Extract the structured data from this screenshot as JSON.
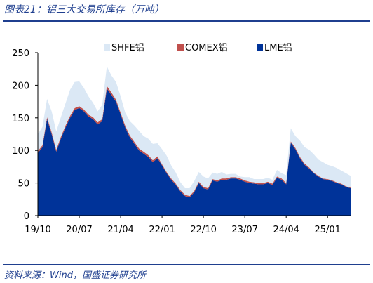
{
  "figure": {
    "title": "图表21：铝三大交易所库存（万吨）",
    "source": "资料来源：Wind，国盛证券研究所"
  },
  "chart_data": {
    "type": "area",
    "stacked": true,
    "unit": "万吨",
    "ylim": [
      0,
      250
    ],
    "y_ticks": [
      0,
      50,
      100,
      150,
      200,
      250
    ],
    "x_tick_labels": [
      "19/10",
      "20/07",
      "21/04",
      "22/01",
      "22/10",
      "23/07",
      "24/04",
      "25/01"
    ],
    "xlim": [
      "2019-10",
      "2025-06"
    ],
    "grid": false,
    "legend_position": "top",
    "colors": {
      "LME铝": "#003399",
      "COMEX铝": "#c0504d",
      "SHFE铝": "#dbe8f5"
    },
    "x": [
      "2019-10",
      "2019-11",
      "2019-12",
      "2020-01",
      "2020-02",
      "2020-03",
      "2020-04",
      "2020-05",
      "2020-06",
      "2020-07",
      "2020-08",
      "2020-09",
      "2020-10",
      "2020-11",
      "2020-12",
      "2021-01",
      "2021-02",
      "2021-03",
      "2021-04",
      "2021-05",
      "2021-06",
      "2021-07",
      "2021-08",
      "2021-09",
      "2021-10",
      "2021-11",
      "2021-12",
      "2022-01",
      "2022-02",
      "2022-03",
      "2022-04",
      "2022-05",
      "2022-06",
      "2022-07",
      "2022-08",
      "2022-09",
      "2022-10",
      "2022-11",
      "2022-12",
      "2023-01",
      "2023-02",
      "2023-03",
      "2023-04",
      "2023-05",
      "2023-06",
      "2023-07",
      "2023-08",
      "2023-09",
      "2023-10",
      "2023-11",
      "2023-12",
      "2024-01",
      "2024-02",
      "2024-03",
      "2024-04",
      "2024-05",
      "2024-06",
      "2024-07",
      "2024-08",
      "2024-09",
      "2024-10",
      "2024-11",
      "2024-12",
      "2025-01",
      "2025-02",
      "2025-03",
      "2025-04",
      "2025-05",
      "2025-06"
    ],
    "series": [
      {
        "name": "LME铝",
        "values": [
          96,
          105,
          148,
          125,
          98,
          118,
          135,
          150,
          162,
          165,
          160,
          152,
          148,
          140,
          145,
          195,
          185,
          175,
          155,
          135,
          120,
          110,
          100,
          95,
          90,
          82,
          88,
          77,
          65,
          55,
          47,
          37,
          30,
          28,
          36,
          50,
          42,
          40,
          54,
          52,
          55,
          55,
          57,
          57,
          55,
          52,
          50,
          49,
          48,
          48,
          50,
          47,
          58,
          55,
          48,
          112,
          102,
          88,
          78,
          72,
          65,
          60,
          56,
          55,
          53,
          50,
          48,
          44,
          42
        ]
      },
      {
        "name": "COMEX铝",
        "values": [
          3,
          3,
          3,
          3,
          3,
          3,
          3,
          3,
          3,
          3,
          3,
          3,
          3,
          3,
          3,
          4,
          4,
          3,
          3,
          3,
          3,
          3,
          3,
          3,
          3,
          3,
          3,
          2,
          2,
          2,
          2,
          2,
          2,
          2,
          2,
          2,
          2,
          2,
          2,
          2,
          2,
          2,
          2,
          2,
          2,
          2,
          2,
          2,
          2,
          2,
          2,
          2,
          2,
          2,
          2,
          2,
          2,
          2,
          2,
          2,
          1,
          1,
          1,
          1,
          1,
          1,
          1,
          1,
          1
        ]
      },
      {
        "name": "SHFE铝",
        "values": [
          26,
          28,
          28,
          32,
          28,
          30,
          34,
          40,
          40,
          38,
          33,
          28,
          22,
          17,
          22,
          30,
          26,
          27,
          25,
          20,
          22,
          25,
          27,
          24,
          25,
          25,
          20,
          23,
          25,
          20,
          17,
          12,
          10,
          12,
          15,
          15,
          16,
          15,
          10,
          10,
          10,
          6,
          5,
          5,
          3,
          5,
          7,
          5,
          6,
          6,
          6,
          6,
          10,
          8,
          12,
          20,
          18,
          25,
          25,
          27,
          28,
          25,
          25,
          22,
          22,
          22,
          20,
          20,
          18
        ]
      }
    ]
  }
}
